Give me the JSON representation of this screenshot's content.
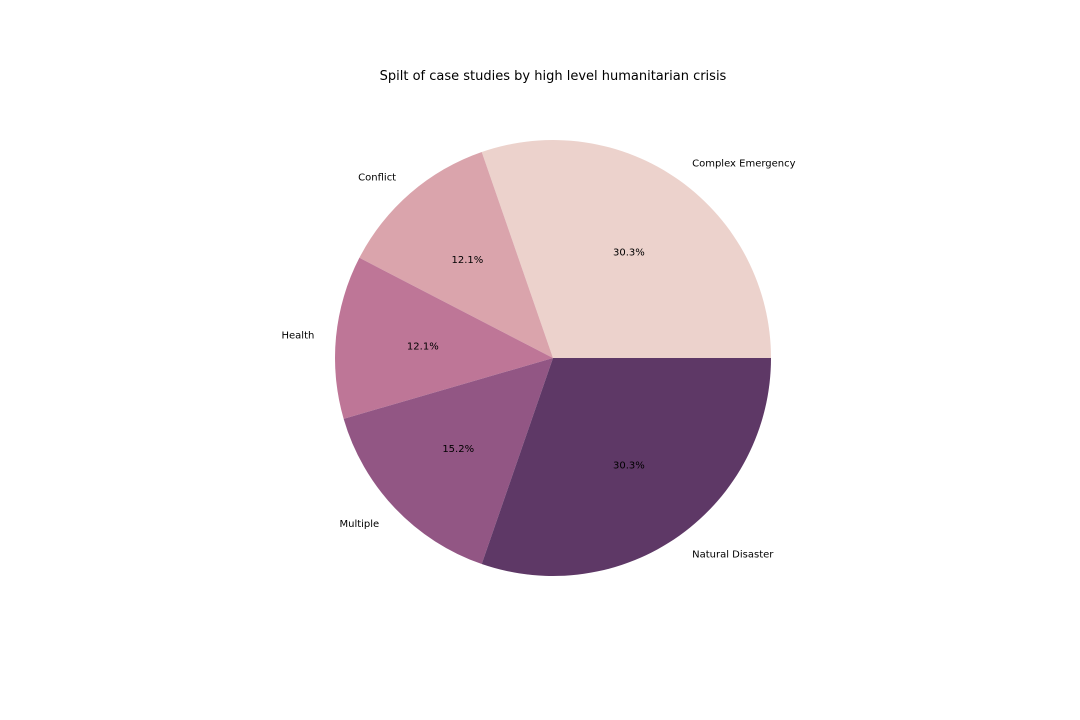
{
  "chart_data": {
    "type": "pie",
    "title": "Spilt of case studies by high level humanitarian crisis",
    "slices": [
      {
        "label": "Complex Emergency",
        "value": 30.3,
        "pct_label": "30.3%",
        "color": "#ecd2cc"
      },
      {
        "label": "Conflict",
        "value": 12.1,
        "pct_label": "12.1%",
        "color": "#daa4ac"
      },
      {
        "label": "Health",
        "value": 12.1,
        "pct_label": "12.1%",
        "color": "#be7697"
      },
      {
        "label": "Multiple",
        "value": 15.2,
        "pct_label": "15.2%",
        "color": "#925684"
      },
      {
        "label": "Natural Disaster",
        "value": 30.3,
        "pct_label": "30.3%",
        "color": "#5e3866"
      }
    ],
    "start_angle_deg": 0,
    "direction": "counterclockwise",
    "legend": "none"
  }
}
